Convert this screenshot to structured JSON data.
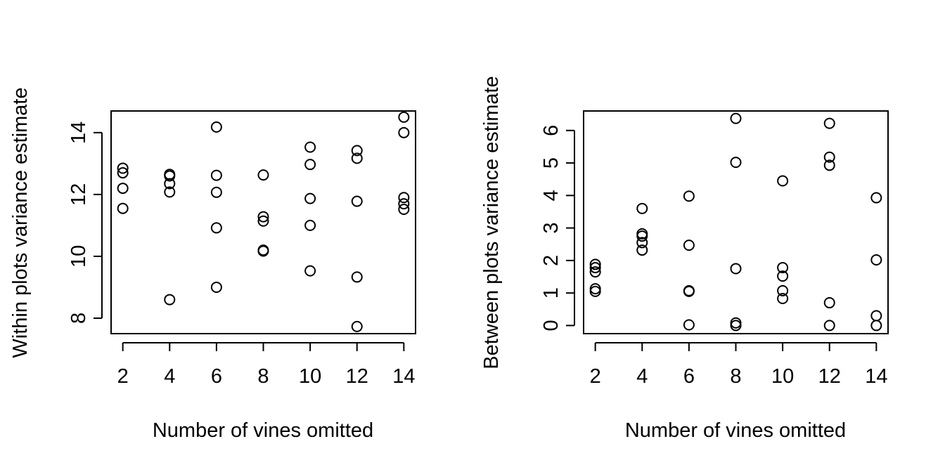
{
  "chart_data": [
    {
      "type": "scatter",
      "xlabel": "Number of vines omitted",
      "ylabel": "Within plots variance estimate",
      "xlim": [
        1.5,
        14.5
      ],
      "ylim": [
        7.5,
        14.7
      ],
      "xticks": [
        2,
        4,
        6,
        8,
        10,
        12,
        14
      ],
      "yticks": [
        8,
        10,
        12,
        14
      ],
      "grid": false,
      "points": [
        {
          "x": 2,
          "y": 12.85
        },
        {
          "x": 2,
          "y": 12.7
        },
        {
          "x": 2,
          "y": 12.2
        },
        {
          "x": 2,
          "y": 11.55
        },
        {
          "x": 4,
          "y": 12.65
        },
        {
          "x": 4,
          "y": 12.6
        },
        {
          "x": 4,
          "y": 12.35
        },
        {
          "x": 4,
          "y": 12.08
        },
        {
          "x": 4,
          "y": 8.6
        },
        {
          "x": 6,
          "y": 14.18
        },
        {
          "x": 6,
          "y": 12.62
        },
        {
          "x": 6,
          "y": 12.07
        },
        {
          "x": 6,
          "y": 10.92
        },
        {
          "x": 6,
          "y": 9.0
        },
        {
          "x": 8,
          "y": 12.63
        },
        {
          "x": 8,
          "y": 11.28
        },
        {
          "x": 8,
          "y": 11.14
        },
        {
          "x": 8,
          "y": 10.2
        },
        {
          "x": 8,
          "y": 10.17
        },
        {
          "x": 10,
          "y": 13.53
        },
        {
          "x": 10,
          "y": 12.97
        },
        {
          "x": 10,
          "y": 11.87
        },
        {
          "x": 10,
          "y": 11.0
        },
        {
          "x": 10,
          "y": 9.53
        },
        {
          "x": 12,
          "y": 13.42
        },
        {
          "x": 12,
          "y": 13.17
        },
        {
          "x": 12,
          "y": 11.78
        },
        {
          "x": 12,
          "y": 9.33
        },
        {
          "x": 12,
          "y": 7.73
        },
        {
          "x": 14,
          "y": 14.5
        },
        {
          "x": 14,
          "y": 14.0
        },
        {
          "x": 14,
          "y": 11.9
        },
        {
          "x": 14,
          "y": 11.7
        },
        {
          "x": 14,
          "y": 11.52
        }
      ]
    },
    {
      "type": "scatter",
      "xlabel": "Number of vines omitted",
      "ylabel": "Between plots variance estimate",
      "xlim": [
        1.5,
        14.5
      ],
      "ylim": [
        -0.25,
        6.6
      ],
      "xticks": [
        2,
        4,
        6,
        8,
        10,
        12,
        14
      ],
      "yticks": [
        0,
        1,
        2,
        3,
        4,
        5,
        6
      ],
      "grid": false,
      "points": [
        {
          "x": 2,
          "y": 1.88
        },
        {
          "x": 2,
          "y": 1.78
        },
        {
          "x": 2,
          "y": 1.65
        },
        {
          "x": 2,
          "y": 1.13
        },
        {
          "x": 2,
          "y": 1.05
        },
        {
          "x": 4,
          "y": 3.6
        },
        {
          "x": 4,
          "y": 2.82
        },
        {
          "x": 4,
          "y": 2.75
        },
        {
          "x": 4,
          "y": 2.55
        },
        {
          "x": 4,
          "y": 2.32
        },
        {
          "x": 6,
          "y": 3.98
        },
        {
          "x": 6,
          "y": 2.47
        },
        {
          "x": 6,
          "y": 1.07
        },
        {
          "x": 6,
          "y": 1.05
        },
        {
          "x": 6,
          "y": 0.02
        },
        {
          "x": 8,
          "y": 6.37
        },
        {
          "x": 8,
          "y": 5.02
        },
        {
          "x": 8,
          "y": 1.75
        },
        {
          "x": 8,
          "y": 0.08
        },
        {
          "x": 8,
          "y": 0.0
        },
        {
          "x": 10,
          "y": 4.45
        },
        {
          "x": 10,
          "y": 1.78
        },
        {
          "x": 10,
          "y": 1.52
        },
        {
          "x": 10,
          "y": 1.07
        },
        {
          "x": 10,
          "y": 0.83
        },
        {
          "x": 12,
          "y": 6.22
        },
        {
          "x": 12,
          "y": 5.18
        },
        {
          "x": 12,
          "y": 4.93
        },
        {
          "x": 12,
          "y": 0.7
        },
        {
          "x": 12,
          "y": 0.0
        },
        {
          "x": 14,
          "y": 3.93
        },
        {
          "x": 14,
          "y": 2.02
        },
        {
          "x": 14,
          "y": 0.3
        },
        {
          "x": 14,
          "y": 0.0
        }
      ]
    }
  ]
}
